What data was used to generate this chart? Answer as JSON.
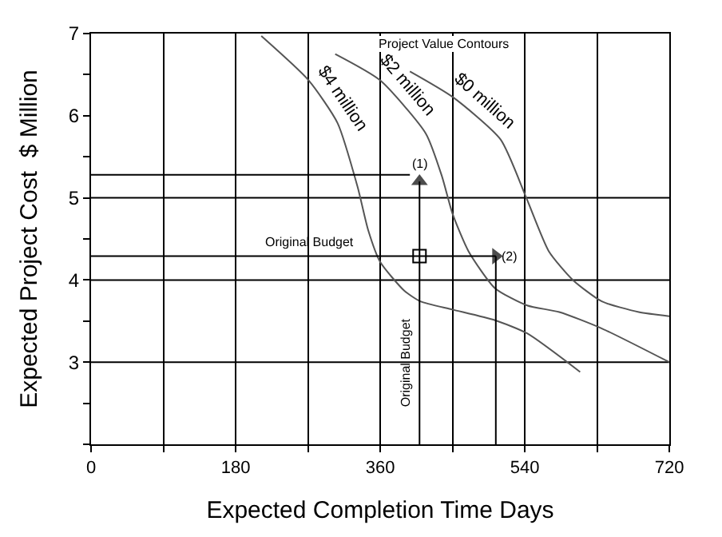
{
  "chart_data": {
    "type": "line",
    "xlabel": "Expected Completion Time Days",
    "ylabel": "Expected Project Cost  $ Million",
    "xlim": [
      0,
      720
    ],
    "xticks": [
      0,
      {
        "value": 90,
        "label": null
      },
      180,
      {
        "value": 270,
        "label": null
      },
      360,
      {
        "value": 450,
        "label": null
      },
      540,
      {
        "value": 630,
        "label": null
      },
      720
    ],
    "ylim": [
      2,
      7
    ],
    "yticks": [
      {
        "value": 2,
        "label": null
      },
      {
        "value": 2.5,
        "label": null
      },
      3,
      {
        "value": 3.5,
        "label": null
      },
      4,
      {
        "value": 4.5,
        "label": null
      },
      5,
      {
        "value": 5.5,
        "label": null
      },
      6,
      {
        "value": 6.5,
        "label": null
      },
      7
    ],
    "grid": "x",
    "ref_lines": [
      {
        "axis": "y",
        "value": 3,
        "color": "#000000"
      },
      {
        "axis": "y",
        "value": 4,
        "color": "#000000"
      },
      {
        "axis": "y",
        "value": 5,
        "color": "#000000"
      }
    ],
    "annotations": [
      "Project Value Contours",
      {
        "text": "(1)",
        "x": 409,
        "y": 5.33
      },
      {
        "text": "(2)",
        "x": 522,
        "y": 4.29
      }
    ],
    "series": [
      {
        "name": "$4 million",
        "color": "#555555",
        "x": [
          212,
          271,
          307,
          332,
          345,
          360,
          390,
          410,
          450,
          503,
          543,
          609
        ],
        "values": [
          6.97,
          6.43,
          5.91,
          5.13,
          4.61,
          4.22,
          3.87,
          3.74,
          3.64,
          3.51,
          3.35,
          2.88
        ]
      },
      {
        "name": "$2 million",
        "color": "#555555",
        "x": [
          304,
          360,
          417,
          437,
          450,
          470,
          503,
          543,
          583,
          636,
          720
        ],
        "values": [
          6.75,
          6.43,
          5.78,
          5.26,
          4.81,
          4.35,
          3.9,
          3.69,
          3.61,
          3.41,
          3.0
        ]
      },
      {
        "name": "$0 million",
        "color": "#555555",
        "x": [
          397,
          450,
          510,
          542,
          570,
          600,
          636,
          682,
          720
        ],
        "values": [
          6.54,
          6.23,
          5.71,
          5.0,
          4.35,
          4.0,
          3.74,
          3.61,
          3.56
        ]
      },
      {
        "name": "Original Budget",
        "color": "#000000",
        "x": [
          0,
          504
        ],
        "values": [
          4.29,
          4.29
        ],
        "marker": "triangle"
      },
      {
        "color": "#000000",
        "x": [
          504,
          504
        ],
        "values": [
          4.29,
          2
        ]
      },
      {
        "color": "#000000",
        "x": [
          0,
          397
        ],
        "values": [
          5.28,
          5.28
        ]
      },
      {
        "name": "Original Budget",
        "color": "#000000",
        "x": [
          409,
          409
        ],
        "values": [
          2,
          5.2
        ],
        "marker": "triangle"
      },
      {
        "type": "scatter",
        "color": "#000000",
        "x": [
          409
        ],
        "values": [
          4.29
        ],
        "marker": "square"
      }
    ]
  }
}
